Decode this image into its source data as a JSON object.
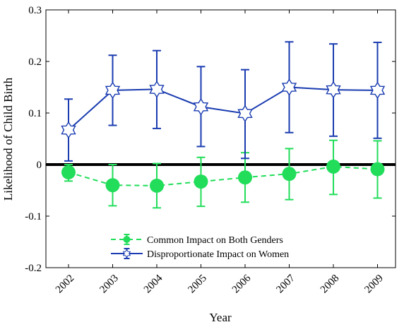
{
  "chart_data": {
    "type": "line",
    "title": "",
    "xlabel": "Year",
    "ylabel": "Likelihood of Child Birth",
    "ylim": [
      -0.2,
      0.3
    ],
    "yticks": [
      -0.2,
      -0.1,
      0,
      0.1,
      0.2,
      0.3
    ],
    "ytick_labels": [
      "-0.2",
      "-0.1",
      "0",
      "0.1",
      "0.2",
      "0.3"
    ],
    "categories": [
      "2002",
      "2003",
      "2004",
      "2005",
      "2006",
      "2007",
      "2008",
      "2009"
    ],
    "legend_position": "bottom-left",
    "grid": false,
    "zero_line": true,
    "series": [
      {
        "name": "Common Impact on Both Genders",
        "color": "#22dd5a",
        "marker": "circle",
        "line_style": "dashed",
        "values": [
          -0.015,
          -0.04,
          -0.041,
          -0.033,
          -0.025,
          -0.018,
          -0.004,
          -0.009
        ],
        "err_low": [
          -0.032,
          -0.08,
          -0.084,
          -0.081,
          -0.073,
          -0.068,
          -0.058,
          -0.065
        ],
        "err_high": [
          0.0,
          0.0,
          0.002,
          0.014,
          0.023,
          0.031,
          0.047,
          0.046
        ]
      },
      {
        "name": "Disproportionate Impact on Women",
        "color": "#1a3cb0",
        "marker": "hexagram",
        "line_style": "solid",
        "values": [
          0.067,
          0.144,
          0.146,
          0.112,
          0.099,
          0.15,
          0.145,
          0.144
        ],
        "err_low": [
          0.007,
          0.076,
          0.07,
          0.035,
          0.012,
          0.062,
          0.055,
          0.051
        ],
        "err_high": [
          0.127,
          0.212,
          0.221,
          0.19,
          0.184,
          0.238,
          0.234,
          0.237
        ]
      }
    ]
  }
}
